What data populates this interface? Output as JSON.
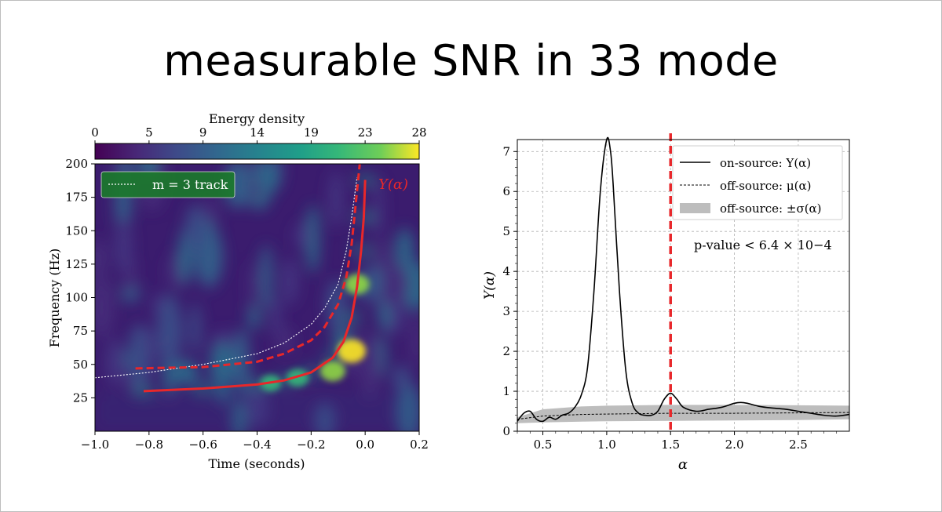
{
  "slide": {
    "title": "measurable SNR in 33 mode"
  },
  "chart_data": [
    {
      "type": "heatmap",
      "title": "",
      "xlabel": "Time (seconds)",
      "ylabel": "Frequency (Hz)",
      "xlim": [
        -1.0,
        0.2
      ],
      "ylim": [
        0,
        200
      ],
      "xticks": [
        "−1.0",
        "−0.8",
        "−0.6",
        "−0.4",
        "−0.2",
        "0.0",
        "0.2"
      ],
      "xtick_values": [
        -1.0,
        -0.8,
        -0.6,
        -0.4,
        -0.2,
        0.0,
        0.2
      ],
      "yticks": [
        "25",
        "50",
        "75",
        "100",
        "125",
        "150",
        "175",
        "200"
      ],
      "ytick_values": [
        25,
        50,
        75,
        100,
        125,
        150,
        175,
        200
      ],
      "colorbar": {
        "label": "Energy density",
        "ticks": [
          "0",
          "5",
          "9",
          "14",
          "19",
          "23",
          "28"
        ],
        "tick_values": [
          0,
          4.67,
          9.33,
          14,
          18.67,
          23.33,
          28
        ],
        "range": [
          0,
          28
        ]
      },
      "legend": {
        "label": "m = 3 track",
        "placement": "top-left"
      },
      "annotation": {
        "text": "Y(α)"
      },
      "series": [
        {
          "name": "m = 3 track",
          "style": "white-dotted",
          "x": [
            -1.0,
            -0.8,
            -0.6,
            -0.4,
            -0.3,
            -0.2,
            -0.15,
            -0.1,
            -0.07,
            -0.05,
            -0.03
          ],
          "y": [
            40,
            44,
            50,
            58,
            66,
            80,
            92,
            110,
            135,
            160,
            190
          ]
        },
        {
          "name": "Y(α) dashed",
          "style": "red-dashed",
          "x": [
            -0.85,
            -0.6,
            -0.4,
            -0.3,
            -0.2,
            -0.15,
            -0.1,
            -0.07,
            -0.05,
            -0.035,
            -0.02
          ],
          "y": [
            47,
            48,
            52,
            58,
            68,
            78,
            95,
            115,
            140,
            170,
            200
          ]
        },
        {
          "name": "Y(α) solid",
          "style": "red-solid",
          "x": [
            -0.82,
            -0.6,
            -0.4,
            -0.3,
            -0.2,
            -0.12,
            -0.08,
            -0.05,
            -0.03,
            -0.015,
            -0.005,
            0.0
          ],
          "y": [
            30,
            32,
            35,
            38,
            44,
            55,
            67,
            85,
            108,
            135,
            160,
            188
          ]
        }
      ],
      "hotspots": [
        {
          "t": -0.05,
          "f": 60,
          "level": 1.0
        },
        {
          "t": -0.03,
          "f": 110,
          "level": 0.7
        },
        {
          "t": -0.25,
          "f": 40,
          "level": 0.55
        },
        {
          "t": -0.12,
          "f": 45,
          "level": 0.75
        },
        {
          "t": -0.35,
          "f": 36,
          "level": 0.45
        }
      ]
    },
    {
      "type": "line",
      "title": "",
      "xlabel": "α",
      "ylabel": "Y(α)",
      "xlim": [
        0.3,
        2.9
      ],
      "ylim": [
        0,
        7.3
      ],
      "xticks": [
        "0.5",
        "1.0",
        "1.5",
        "2.0",
        "2.5"
      ],
      "xtick_values": [
        0.5,
        1.0,
        1.5,
        2.0,
        2.5
      ],
      "yticks": [
        "0",
        "1",
        "2",
        "3",
        "4",
        "5",
        "6",
        "7"
      ],
      "ytick_values": [
        0,
        1,
        2,
        3,
        4,
        5,
        6,
        7
      ],
      "grid": true,
      "legend": {
        "placement": "top-right",
        "entries": [
          "on-source: Y(α)",
          "off-source: μ(α)",
          "off-source: ±σ(α)"
        ]
      },
      "annotation": {
        "text": "p-value < 6.4 × 10−4"
      },
      "vline": {
        "x": 1.5,
        "style": "red-dashed"
      },
      "series": [
        {
          "name": "on-source: Y(α)",
          "x": [
            0.3,
            0.35,
            0.4,
            0.45,
            0.5,
            0.55,
            0.6,
            0.65,
            0.7,
            0.75,
            0.8,
            0.85,
            0.9,
            0.95,
            1.0,
            1.03,
            1.05,
            1.1,
            1.15,
            1.2,
            1.25,
            1.3,
            1.35,
            1.4,
            1.45,
            1.5,
            1.55,
            1.6,
            1.7,
            1.8,
            1.9,
            2.0,
            2.05,
            2.1,
            2.2,
            2.3,
            2.4,
            2.5,
            2.6,
            2.7,
            2.8,
            2.9
          ],
          "y": [
            0.25,
            0.45,
            0.5,
            0.3,
            0.25,
            0.35,
            0.3,
            0.4,
            0.45,
            0.6,
            0.9,
            1.6,
            3.5,
            6.0,
            7.3,
            7.0,
            6.2,
            3.5,
            1.5,
            0.7,
            0.45,
            0.4,
            0.4,
            0.5,
            0.8,
            0.95,
            0.8,
            0.6,
            0.5,
            0.55,
            0.6,
            0.7,
            0.72,
            0.7,
            0.62,
            0.58,
            0.55,
            0.5,
            0.45,
            0.4,
            0.38,
            0.42
          ]
        },
        {
          "name": "off-source: μ(α)",
          "x": [
            0.3,
            0.5,
            0.8,
            1.0,
            1.5,
            2.0,
            2.5,
            2.9
          ],
          "y": [
            0.3,
            0.38,
            0.42,
            0.43,
            0.45,
            0.45,
            0.46,
            0.47
          ]
        },
        {
          "name": "off-source: ±σ(α)",
          "x": [
            0.3,
            0.5,
            0.8,
            1.0,
            1.5,
            2.0,
            2.5,
            2.9
          ],
          "upper": [
            0.35,
            0.55,
            0.62,
            0.64,
            0.66,
            0.66,
            0.65,
            0.64
          ],
          "lower": [
            0.2,
            0.22,
            0.24,
            0.25,
            0.26,
            0.27,
            0.28,
            0.3
          ]
        }
      ]
    }
  ]
}
